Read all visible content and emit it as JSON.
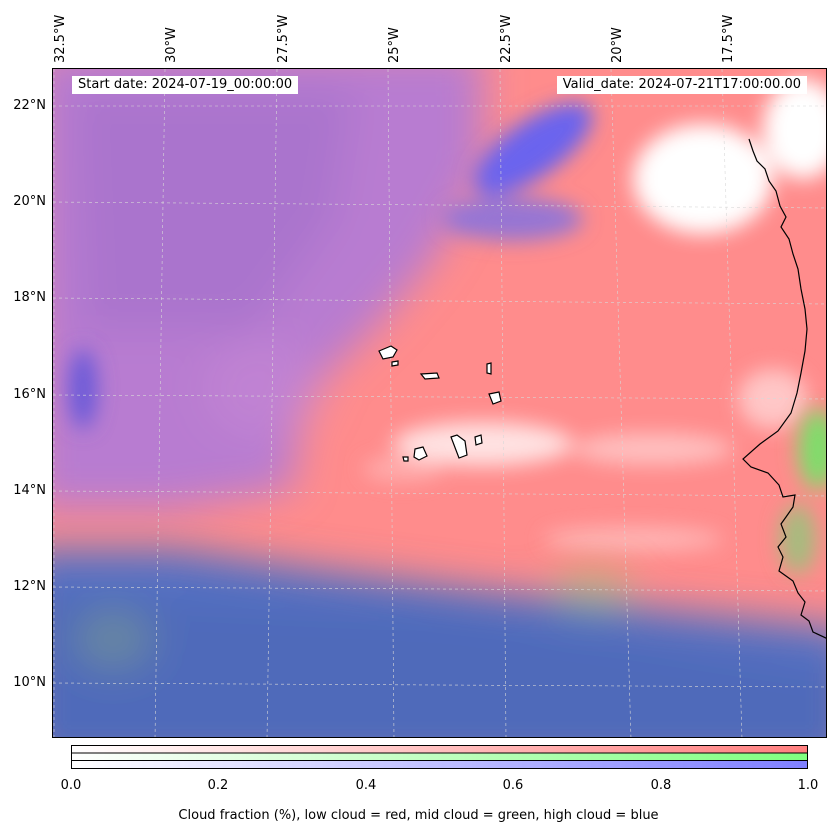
{
  "map": {
    "start_date": "Start date: 2024-07-19_00:00:00",
    "valid_date": "Valid_date: 2024-07-21T17:00:00.00",
    "lon_labels": [
      "32.5°W",
      "30°W",
      "27.5°W",
      "25°W",
      "22.5°W",
      "20°W",
      "17.5°W"
    ],
    "lat_labels": [
      "22°N",
      "20°N",
      "18°N",
      "16°N",
      "14°N",
      "12°N",
      "10°N"
    ],
    "colors": {
      "low_cloud": "#ff7f7f",
      "mid_cloud": "#7fff7f",
      "high_cloud": "#7f7fff"
    }
  },
  "colorbar": {
    "ticks": [
      "0.0",
      "0.2",
      "0.4",
      "0.6",
      "0.8",
      "1.0"
    ],
    "caption": "Cloud fraction (%), low cloud = red, mid cloud = green, high cloud = blue"
  }
}
